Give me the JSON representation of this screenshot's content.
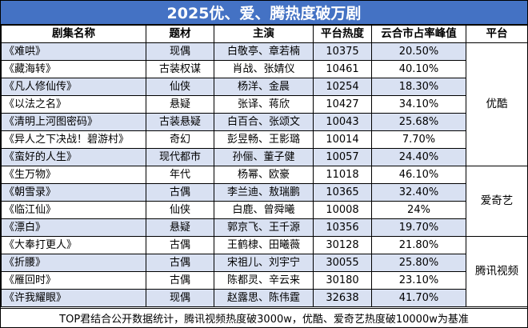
{
  "title": "2025优、爱、腾热度破万剧",
  "headers": {
    "name": "剧集名称",
    "genre": "题材",
    "cast": "主演",
    "heat": "平台热度",
    "share": "云合市占率峰值",
    "platform": "平台"
  },
  "rows": [
    {
      "name": "《难哄》",
      "genre": "现偶",
      "cast": "白敬亭、章若楠",
      "heat": "10375",
      "share": "20.50%"
    },
    {
      "name": "《藏海转》",
      "genre": "古装权谋",
      "cast": "肖战、张婧仪",
      "heat": "10461",
      "share": "40.10%"
    },
    {
      "name": "《凡人修仙传》",
      "genre": "仙侠",
      "cast": "杨洋、金晨",
      "heat": "10254",
      "share": "18.30%"
    },
    {
      "name": "《以法之名》",
      "genre": "悬疑",
      "cast": "张译、蒋欣",
      "heat": "10427",
      "share": "34.10%"
    },
    {
      "name": "《清明上河图密码》",
      "genre": "古装悬疑",
      "cast": "白百合、张颂文",
      "heat": "10043",
      "share": "25.68%"
    },
    {
      "name": "《异人之下决战！碧游村》",
      "genre": "奇幻",
      "cast": "彭昱畅、王影璐",
      "heat": "10014",
      "share": "7.70%"
    },
    {
      "name": "《蛮好的人生》",
      "genre": "现代都市",
      "cast": "孙俪、董子健",
      "heat": "10057",
      "share": "24.40%"
    },
    {
      "name": "《生万物》",
      "genre": "年代",
      "cast": "杨幂、欧豪",
      "heat": "11018",
      "share": "46.10%"
    },
    {
      "name": "《朝雪录》",
      "genre": "古偶",
      "cast": "李兰迪、敖瑞鹏",
      "heat": "10365",
      "share": "32.40%"
    },
    {
      "name": "《临江仙》",
      "genre": "仙侠",
      "cast": "白鹿、曾舜曦",
      "heat": "10008",
      "share": "24%"
    },
    {
      "name": "《漂白》",
      "genre": "悬疑",
      "cast": "郭京飞、王千源",
      "heat": "10356",
      "share": "19.70%"
    },
    {
      "name": "《大奉打更人》",
      "genre": "古偶",
      "cast": "王鹤棣、田曦薇",
      "heat": "30128",
      "share": "21.80%"
    },
    {
      "name": "《折腰》",
      "genre": "古偶",
      "cast": "宋祖儿、刘宇宁",
      "heat": "30055",
      "share": "25.80%"
    },
    {
      "name": "《雁回时》",
      "genre": "古偶",
      "cast": "陈都灵、辛云来",
      "heat": "30180",
      "share": "23.10%"
    },
    {
      "name": "《许我耀眼》",
      "genre": "现偶",
      "cast": "赵露思、陈伟霆",
      "heat": "32638",
      "share": "41.70%"
    }
  ],
  "platforms": [
    {
      "label": "优酷",
      "rows": 7
    },
    {
      "label": "爱奇艺",
      "rows": 4
    },
    {
      "label": "腾讯视频",
      "rows": 4
    }
  ],
  "footer": "TOP君结合公开数据统计，腾讯视频热度破3000w，优酷、爱奇艺热度破10000w为基准",
  "colors": {
    "title_bg": "#4472c4",
    "band": "#d9e1f2"
  }
}
